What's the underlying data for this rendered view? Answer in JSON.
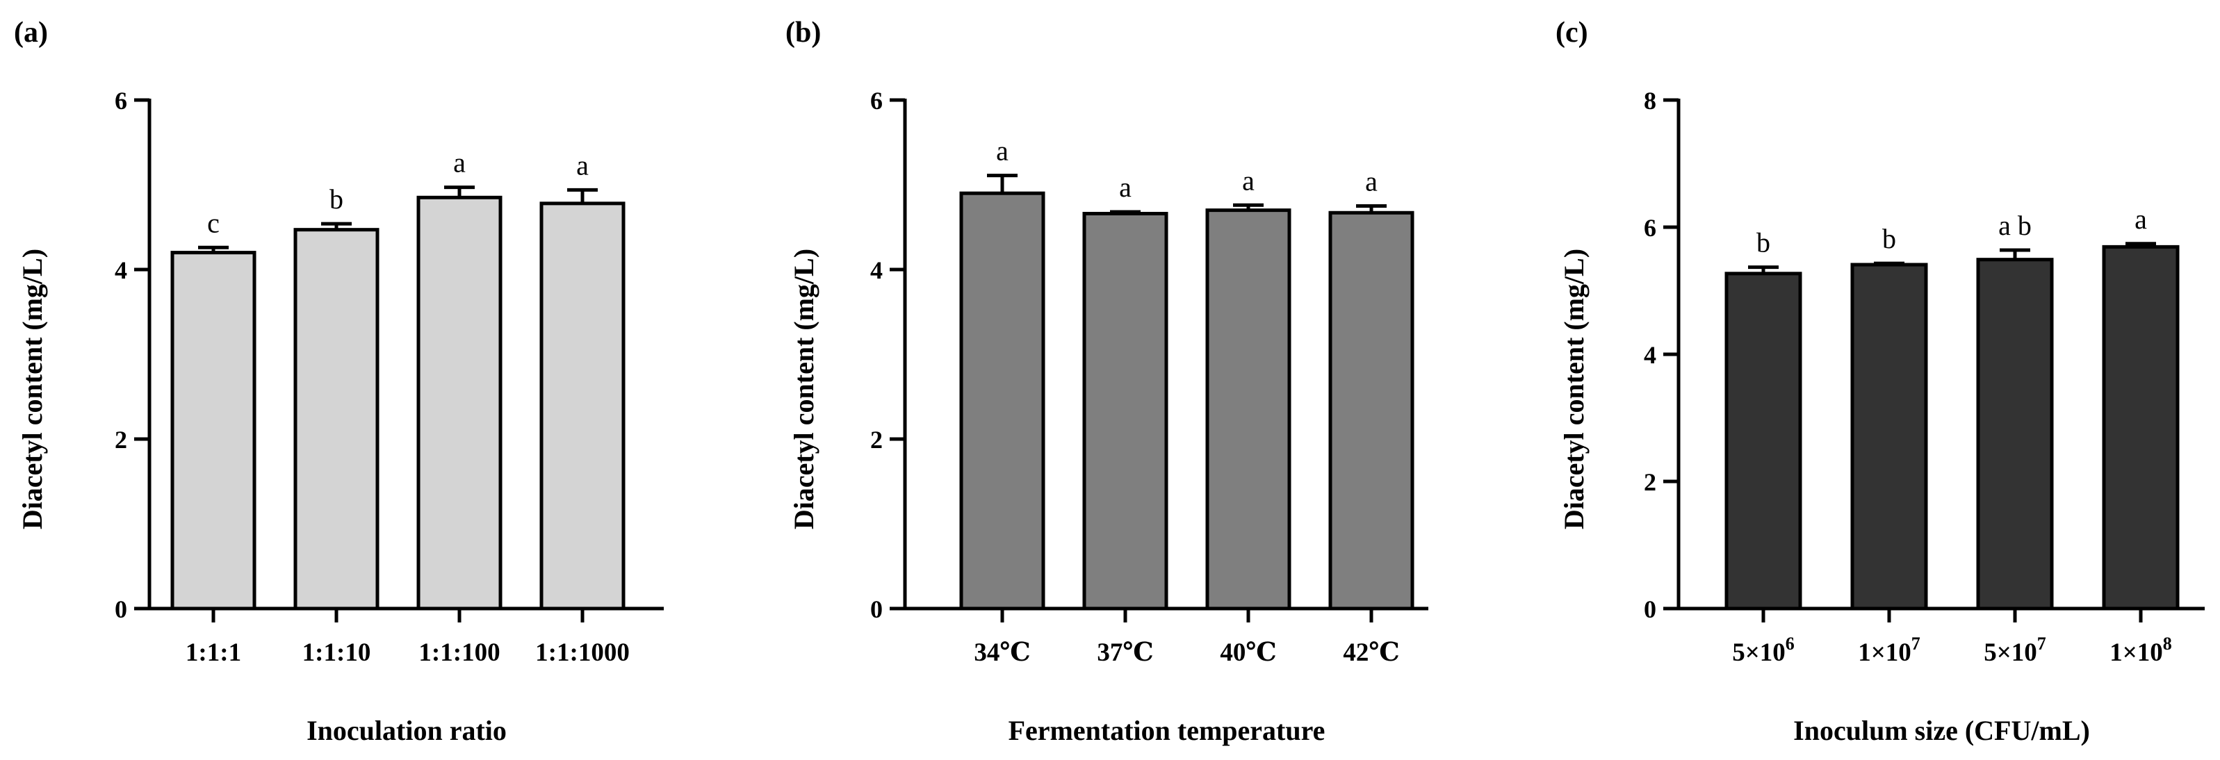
{
  "chart_data": [
    {
      "type": "bar",
      "panel": "(a)",
      "ylabel": "Diacetyl content (mg/L)",
      "xlabel": "Inoculation ratio",
      "ylim": [
        0,
        6
      ],
      "yticks": [
        "0",
        "2",
        "4",
        "6"
      ],
      "categories": [
        "1:1:1",
        "1:1:10",
        "1:1:100",
        "1:1:1000"
      ],
      "values": [
        4.2,
        4.47,
        4.85,
        4.78
      ],
      "errors": [
        0.06,
        0.07,
        0.12,
        0.16
      ],
      "significance": [
        "c",
        "b",
        "a",
        "a"
      ],
      "bar_color": "#d4d4d4"
    },
    {
      "type": "bar",
      "panel": "(b)",
      "ylabel": "Diacetyl content (mg/L)",
      "xlabel": "Fermentation temperature",
      "ylim": [
        0,
        6
      ],
      "yticks": [
        "0",
        "2",
        "4",
        "6"
      ],
      "categories": [
        "34℃",
        "37℃",
        "40℃",
        "42℃"
      ],
      "values": [
        4.9,
        4.66,
        4.7,
        4.67
      ],
      "errors": [
        0.21,
        0.02,
        0.06,
        0.08
      ],
      "significance": [
        "a",
        "a",
        "a",
        "a"
      ],
      "bar_color": "#7f7f7f"
    },
    {
      "type": "bar",
      "panel": "(c)",
      "ylabel": "Diacetyl content (mg/L)",
      "xlabel": "Inoculum size (CFU/mL)",
      "ylim": [
        0,
        8
      ],
      "yticks": [
        "0",
        "2",
        "4",
        "6",
        "8"
      ],
      "categories": [
        {
          "mant": "5×10",
          "exp": "6"
        },
        {
          "mant": "1×10",
          "exp": "7"
        },
        {
          "mant": "5×10",
          "exp": "7"
        },
        {
          "mant": "1×10",
          "exp": "8"
        }
      ],
      "values": [
        5.27,
        5.41,
        5.49,
        5.69
      ],
      "errors": [
        0.1,
        0.02,
        0.15,
        0.05
      ],
      "significance": [
        "b",
        "b",
        "a b",
        "a"
      ],
      "bar_color": "#333333"
    }
  ]
}
